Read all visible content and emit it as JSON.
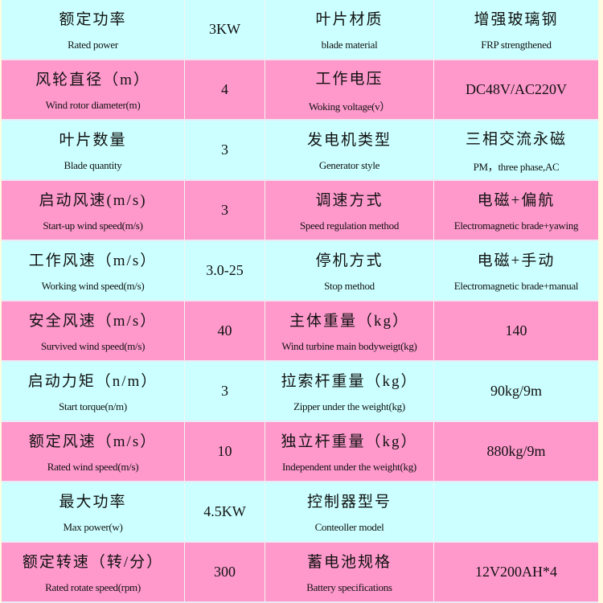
{
  "colors": {
    "cyan_row": "#ccffff",
    "pink_row": "#ff99cc"
  },
  "rows": [
    {
      "label_zh": "额定功率",
      "label_en": "Rated power",
      "value": "3KW",
      "label2_zh": "叶片材质",
      "label2_en": "blade material",
      "value2_zh": "增强玻璃钢",
      "value2_en": "FRP strengthened"
    },
    {
      "label_zh": "风轮直径（m）",
      "label_en": "Wind rotor diameter(m)",
      "value": "4",
      "label2_zh": "工作电压",
      "label2_en": "Woking voltage(v）",
      "value2_zh": "",
      "value2_en": "DC48V/AC220V"
    },
    {
      "label_zh": "叶片数量",
      "label_en": "Blade quantity",
      "value": "3",
      "label2_zh": "发电机类型",
      "label2_en": "Generator style",
      "value2_zh": "三相交流永磁",
      "value2_en": "PM，three phase,AC"
    },
    {
      "label_zh": "启动风速(m/s)",
      "label_en": "Start-up wind speed(m/s)",
      "value": "3",
      "label2_zh": "调速方式",
      "label2_en": "Speed regulation method",
      "value2_zh": "电磁+偏航",
      "value2_en": "Electromagnetic brade+yawing"
    },
    {
      "label_zh": "工作风速（m/s）",
      "label_en": "Working wind speed(m/s)",
      "value": "3.0-25",
      "label2_zh": "停机方式",
      "label2_en": "Stop method",
      "value2_zh": "电磁+手动",
      "value2_en": "Electromagnetic brade+manual"
    },
    {
      "label_zh": "安全风速（m/s）",
      "label_en": "Survived wind speed(m/s)",
      "value": "40",
      "label2_zh": "主体重量（kg）",
      "label2_en": "Wind turbine main bodyweigt(kg)",
      "value2_zh": "",
      "value2_en": "140"
    },
    {
      "label_zh": "启动力矩（n/m）",
      "label_en": "Start torque(n/m)",
      "value": "3",
      "label2_zh": "拉索杆重量（kg）",
      "label2_en": "Zipper under the weight(kg)",
      "value2_zh": "",
      "value2_en": "90kg/9m"
    },
    {
      "label_zh": "额定风速（m/s）",
      "label_en": "Rated wind speed(m/s)",
      "value": "10",
      "label2_zh": "独立杆重量（kg）",
      "label2_en": "Independent under the weight(kg)",
      "value2_zh": "",
      "value2_en": "880kg/9m"
    },
    {
      "label_zh": "最大功率",
      "label_en": "Max power(w)",
      "value": "4.5KW",
      "label2_zh": "控制器型号",
      "label2_en": "Conteoller model",
      "value2_zh": "",
      "value2_en": ""
    },
    {
      "label_zh": "额定转速（转/分）",
      "label_en": "Rated rotate speed(rpm)",
      "value": "300",
      "label2_zh": "蓄电池规格",
      "label2_en": "Battery specifications",
      "value2_zh": "",
      "value2_en": "12V200AH*4"
    }
  ]
}
